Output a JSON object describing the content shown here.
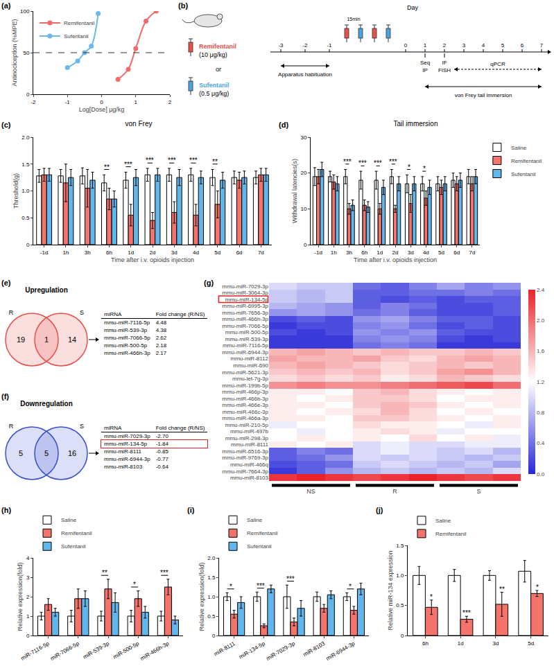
{
  "chart_data": [
    {
      "panel": "(a)",
      "type": "scatter",
      "x_label": "Log[Dose] μg/kg",
      "y_label": "Antinociception (%MPE)",
      "xlim": [
        -2,
        2
      ],
      "xticks": [
        -2,
        -1,
        0,
        1,
        2
      ],
      "ylim": [
        0,
        100
      ],
      "yticks": [
        0,
        50,
        100
      ],
      "hline": 50,
      "legend": "top-left",
      "series": [
        {
          "name": "Remifentanil",
          "color": "#f26b6b",
          "marker": "circle",
          "line_style": "spline",
          "x": [
            0.48,
            0.78,
            1.0,
            1.3,
            1.6
          ],
          "values": [
            18,
            30,
            55,
            88,
            100
          ]
        },
        {
          "name": "Sufentanil",
          "color": "#6bb8ea",
          "marker": "circle",
          "line_style": "spline",
          "x": [
            -1.0,
            -0.7,
            -0.5,
            -0.3,
            -0.1
          ],
          "values": [
            32,
            40,
            50,
            58,
            97
          ]
        }
      ]
    },
    {
      "panel": "(c)",
      "type": "bar",
      "title": "von Frey",
      "x_label": "Time after i.v. opioids injection",
      "y_label": "Threshold(g)",
      "categories": [
        "-1d",
        "1h",
        "3h",
        "6h",
        "1d",
        "2d",
        "3d",
        "4d",
        "5d",
        "6d",
        "7d"
      ],
      "ylim": [
        0,
        2
      ],
      "yticks": [
        0,
        0.5,
        {
          "value": 1,
          "label": "1.0"
        },
        1.5,
        {
          "value": 2,
          "label": "2.0"
        }
      ],
      "series": [
        {
          "name": "Saline",
          "color": "#ffffff",
          "values": [
            1.28,
            1.28,
            1.28,
            1.15,
            1.2,
            1.3,
            1.3,
            1.3,
            1.25,
            1.25,
            1.25
          ],
          "errors": [
            0.12,
            0.12,
            0.15,
            0.15,
            0.15,
            0.12,
            0.12,
            0.12,
            0.15,
            0.12,
            0.12
          ]
        },
        {
          "name": "Remifentanil",
          "color": "#f4736b",
          "values": [
            1.3,
            1.15,
            1.05,
            0.85,
            0.55,
            0.45,
            0.6,
            0.55,
            0.75,
            1.2,
            1.3
          ],
          "errors": [
            0.12,
            0.35,
            0.35,
            0.2,
            0.2,
            0.15,
            0.2,
            0.2,
            0.25,
            0.15,
            0.12
          ]
        },
        {
          "name": "Sufentanil",
          "color": "#61b7ec",
          "values": [
            1.3,
            1.25,
            1.2,
            0.85,
            1.25,
            1.3,
            1.25,
            1.25,
            1.2,
            1.25,
            1.3
          ],
          "errors": [
            0.12,
            0.15,
            0.15,
            0.15,
            0.15,
            0.12,
            0.15,
            0.12,
            0.15,
            0.12,
            0.12
          ]
        }
      ],
      "significance": [
        null,
        null,
        null,
        "**",
        "***",
        "***",
        "***",
        "***",
        "**",
        null,
        null
      ]
    },
    {
      "panel": "(d)",
      "type": "bar",
      "title": "Tail immersion",
      "x_label": "Time after i.v. opioids injection",
      "y_label": "Withdrawal latencies(s)",
      "legend": "right",
      "categories": [
        "-1d",
        "1h",
        "3h",
        "6h",
        "1d",
        "2d",
        "3d",
        "4d",
        "5d",
        "6d",
        "7d"
      ],
      "ylim": [
        0,
        30
      ],
      "yticks": [
        0,
        10,
        20,
        30
      ],
      "series": [
        {
          "name": "Saline",
          "color": "#ffffff",
          "values": [
            19,
            19,
            19,
            18,
            18,
            19,
            17,
            17,
            17,
            18,
            19
          ],
          "errors": [
            2.5,
            1.5,
            2,
            2.5,
            2.5,
            2,
            2.5,
            2,
            2,
            2,
            2
          ]
        },
        {
          "name": "Remifentanil",
          "color": "#f4736b",
          "values": [
            19,
            17.5,
            10,
            11,
            10,
            10,
            11.5,
            13,
            16,
            17,
            17
          ],
          "errors": [
            2,
            2,
            1.5,
            1.5,
            1.5,
            1,
            2.5,
            2,
            2,
            2,
            2
          ]
        },
        {
          "name": "Sufentanil",
          "color": "#61b7ec",
          "values": [
            21,
            17,
            11,
            10.5,
            16,
            17,
            17,
            16,
            17,
            18,
            19
          ],
          "errors": [
            2,
            2,
            1.5,
            1.5,
            2,
            2,
            2,
            2,
            2,
            2,
            2
          ]
        }
      ],
      "significance": [
        null,
        null,
        "***",
        "***",
        "***",
        "***",
        "*",
        "*",
        null,
        null,
        null
      ]
    },
    {
      "panel": "(g)",
      "type": "heatmap",
      "highlighted": "mmu-miR-134-5p",
      "rows": [
        "mmu-miR-7029-3p",
        "mmu-miR-3064-3p",
        "mmu-miR-134-5p",
        "mmu-miR-6995-3p",
        "mmu-miR-7656-3p",
        "mmu-miR-466h-3p",
        "mmu-miR-7066-5p",
        "mmu-miR-500-5p",
        "mmu-miR-539-3p",
        "mmu-miR-7116-5p",
        "mmu-miR-6944-3p",
        "mmu-miR-8112",
        "mmu-miR-690",
        "mmu-miR-5621-3p",
        "mmu-let-7g-3p",
        "mmu-miR-199b-5p",
        "mmu-miR-466p-3p",
        "mmu-miR-466b-3p",
        "mmu-miR-466e-3p",
        "mmu-miR-466c-3p",
        "mmu-miR-466a-3p",
        "mmu-miR-210-5p",
        "mmu-miR-497b",
        "mmu-miR-298-3p",
        "mmu-miR-8111",
        "mmu-miR-6516-3p",
        "mmu-miR-9769-3p",
        "mmu-miR-466q",
        "mmu-miR-7664-3p",
        "mmu-miR-8103"
      ],
      "columns": [
        "NS",
        "NS",
        "NS",
        "R",
        "R",
        "R",
        "S",
        "S",
        "S"
      ],
      "colors": [
        "#2828d8",
        "#ffffff",
        "#e8242a"
      ],
      "color_range": [
        0,
        2.4
      ],
      "color_ticks": [
        {
          "value": 0,
          "label": "0.0"
        },
        0.4,
        0.8,
        1.2,
        1.6,
        {
          "value": 2,
          "label": "2.0"
        },
        2.4
      ],
      "cells": [
        [
          1.0,
          0.9,
          0.9,
          0.4,
          0.3,
          0.5,
          0.7,
          0.5,
          0.6
        ],
        [
          0.9,
          0.8,
          0.9,
          0.3,
          0.3,
          0.4,
          0.4,
          0.5,
          0.4
        ],
        [
          0.9,
          0.8,
          0.9,
          0.3,
          0.2,
          0.3,
          0.2,
          0.3,
          0.3
        ],
        [
          0.8,
          0.7,
          0.6,
          0.3,
          0.5,
          0.4,
          0.2,
          0.2,
          0.3
        ],
        [
          0.6,
          0.7,
          0.6,
          0.4,
          0.5,
          0.3,
          0.2,
          0.2,
          0.3
        ],
        [
          0.2,
          0.3,
          0.2,
          0.6,
          0.7,
          0.5,
          0.3,
          0.3,
          0.2
        ],
        [
          0.1,
          0.2,
          0.2,
          0.5,
          0.6,
          0.4,
          0.2,
          0.3,
          0.2
        ],
        [
          0.2,
          0.1,
          0.2,
          0.6,
          0.5,
          0.6,
          0.3,
          0.2,
          0.2
        ],
        [
          0.1,
          0.1,
          0.1,
          0.5,
          0.6,
          0.5,
          0.2,
          0.1,
          0.2
        ],
        [
          0.1,
          0.1,
          0.1,
          0.4,
          0.5,
          0.4,
          0.1,
          0.1,
          0.1
        ],
        [
          1.6,
          1.7,
          1.6,
          1.5,
          1.6,
          1.5,
          1.5,
          1.6,
          1.5
        ],
        [
          1.7,
          1.6,
          1.6,
          1.7,
          1.5,
          1.4,
          1.6,
          1.7,
          1.6
        ],
        [
          1.6,
          1.7,
          1.6,
          1.5,
          1.4,
          1.5,
          1.6,
          1.5,
          1.6
        ],
        [
          1.5,
          1.6,
          1.5,
          1.6,
          1.4,
          1.5,
          1.7,
          1.8,
          1.6
        ],
        [
          1.4,
          1.5,
          1.4,
          1.5,
          1.3,
          1.4,
          1.6,
          1.5,
          1.4
        ],
        [
          1.8,
          1.9,
          1.8,
          1.8,
          1.9,
          2.0,
          2.1,
          2.2,
          2.0
        ],
        [
          1.3,
          1.3,
          1.2,
          1.5,
          1.6,
          1.4,
          1.3,
          1.2,
          1.3
        ],
        [
          1.3,
          1.2,
          1.3,
          1.5,
          1.5,
          1.4,
          1.2,
          1.3,
          1.3
        ],
        [
          1.3,
          1.3,
          1.2,
          1.5,
          1.6,
          1.5,
          1.3,
          1.2,
          1.3
        ],
        [
          1.3,
          1.2,
          1.3,
          1.4,
          1.6,
          1.4,
          1.2,
          1.3,
          1.2
        ],
        [
          1.3,
          1.3,
          1.2,
          1.5,
          1.5,
          1.4,
          1.3,
          1.2,
          1.3
        ],
        [
          1.1,
          1.2,
          1.2,
          1.4,
          1.3,
          1.3,
          1.2,
          1.1,
          1.3
        ],
        [
          1.2,
          1.1,
          1.2,
          1.3,
          1.4,
          1.3,
          1.1,
          1.2,
          1.2
        ],
        [
          1.2,
          1.3,
          1.2,
          1.3,
          1.2,
          1.4,
          1.2,
          1.3,
          1.1
        ],
        [
          1.3,
          1.2,
          1.3,
          1.0,
          1.1,
          1.0,
          1.0,
          1.1,
          1.1
        ],
        [
          0.3,
          0.5,
          0.4,
          1.0,
          1.1,
          1.0,
          0.9,
          1.0,
          0.8
        ],
        [
          0.3,
          0.4,
          0.6,
          1.0,
          0.9,
          1.0,
          0.9,
          0.8,
          0.9
        ],
        [
          0.2,
          0.3,
          0.4,
          0.9,
          1.0,
          0.9,
          0.8,
          0.9,
          0.7
        ],
        [
          0.1,
          0.3,
          0.6,
          0.8,
          0.9,
          0.8,
          0.9,
          0.8,
          1.0
        ],
        [
          2.3,
          2.4,
          2.3,
          2.2,
          2.3,
          2.4,
          2.3,
          2.2,
          2.3
        ]
      ]
    },
    {
      "panel": "(h)",
      "type": "bar",
      "y_label": "Relative expression(fold)",
      "legend": "top",
      "categories": [
        "miR-7116-5p",
        "miR-7066-5p",
        "miR-539-3p",
        "miR-500-5p",
        "miR-466h-3p"
      ],
      "ylim": [
        0,
        4
      ],
      "yticks": [
        0,
        1,
        2,
        3,
        4
      ],
      "series": [
        {
          "name": "Saline",
          "color": "#ffffff",
          "values": [
            1,
            1,
            1,
            1,
            1
          ],
          "errors": [
            0.2,
            0.3,
            0.25,
            0.3,
            0.25
          ]
        },
        {
          "name": "Remifentanil",
          "color": "#f4736b",
          "values": [
            1.6,
            1.9,
            2.4,
            1.9,
            2.5
          ],
          "errors": [
            0.3,
            0.5,
            0.5,
            0.4,
            0.4
          ]
        },
        {
          "name": "Sufentanil",
          "color": "#61b7ec",
          "values": [
            1.2,
            1.9,
            1.7,
            1.2,
            0.8
          ],
          "errors": [
            0.2,
            0.4,
            0.5,
            0.3,
            0.2
          ]
        }
      ],
      "significance": [
        null,
        null,
        "**",
        "*",
        "***"
      ]
    },
    {
      "panel": "(i)",
      "type": "bar",
      "y_label": "Relative expression(fold)",
      "legend": "top",
      "categories": [
        "miR-8111",
        "miR-134-5p",
        "miR-7029-3p",
        "miR-8103",
        "miR-6944-3p"
      ],
      "ylim": [
        0,
        2
      ],
      "yticks": [
        0,
        0.5,
        {
          "value": 1,
          "label": "1.0"
        },
        1.5,
        {
          "value": 2,
          "label": "2.0"
        }
      ],
      "series": [
        {
          "name": "Saline",
          "color": "#ffffff",
          "values": [
            1,
            1,
            1,
            1,
            1
          ],
          "errors": [
            0.1,
            0.12,
            0.3,
            0.12,
            0.1
          ]
        },
        {
          "name": "Remifentanil",
          "color": "#f4736b",
          "values": [
            0.55,
            0.25,
            0.35,
            0.7,
            0.65
          ],
          "errors": [
            0.1,
            0.05,
            0.1,
            0.1,
            0.1
          ]
        },
        {
          "name": "Sufentanil",
          "color": "#61b7ec",
          "values": [
            0.85,
            1.2,
            0.7,
            1.05,
            1.2
          ],
          "errors": [
            0.15,
            0.1,
            0.2,
            0.1,
            0.15
          ]
        }
      ],
      "significance": [
        "*",
        "***",
        "***",
        null,
        "*"
      ]
    },
    {
      "panel": "(j)",
      "type": "bar",
      "y_label": "Relative miR-134 expression",
      "legend": "top",
      "categories": [
        "6h",
        "1d",
        "3d",
        "5d"
      ],
      "ylim": [
        0,
        1.5
      ],
      "yticks": [
        0,
        0.5,
        {
          "value": 1,
          "label": "1.0"
        },
        1.5
      ],
      "series": [
        {
          "name": "Saline",
          "color": "#ffffff",
          "values": [
            1.0,
            1.0,
            1.0,
            1.07
          ],
          "errors": [
            0.15,
            0.1,
            0.08,
            0.18
          ]
        },
        {
          "name": "Remifentanil",
          "color": "#f4736b",
          "values": [
            0.47,
            0.27,
            0.52,
            0.7
          ],
          "errors": [
            0.12,
            0.05,
            0.2,
            0.05
          ]
        }
      ],
      "significance": [
        "*",
        "***",
        "**",
        "*"
      ]
    }
  ],
  "diagram": {
    "panel": "(b)",
    "drugs": [
      {
        "name": "Remifentanil",
        "dose": "(10 μg/kg)",
        "color": "#e8504a"
      },
      {
        "name": "Sufentanil",
        "dose": "(0.5 μg/kg)",
        "color": "#4aa3df"
      }
    ],
    "or": "or",
    "axis_label": "Day",
    "days": [
      -3,
      -2,
      -1,
      0,
      1,
      2,
      3,
      4,
      5,
      6,
      7
    ],
    "interval": "15min",
    "habituation": "Apparatus habituation",
    "tests": "von Frey tail immersion",
    "day1": [
      "Seq",
      "IP"
    ],
    "day2": [
      "IF",
      "FISH"
    ],
    "range_assay": "qPCR"
  },
  "venn": [
    {
      "panel": "(e)",
      "title": "Upregulation",
      "left": "R",
      "right": "S",
      "left_only": 19,
      "both": 1,
      "right_only": 14,
      "color": "#e8504a",
      "table_header": [
        "miRNA",
        "Fold change (R/NS)"
      ],
      "rows": [
        [
          "mmu-miR-7116-5p",
          "4.48"
        ],
        [
          "mmu-miR-539-3p",
          "4.38"
        ],
        [
          "mmu-miR-7066-5p",
          "2.62"
        ],
        [
          "mmu-miR-500-5p",
          "2.18"
        ],
        [
          "mmu-miR-466h-3p",
          "2.17"
        ]
      ]
    },
    {
      "panel": "(f)",
      "title": "Downregulation",
      "left": "R",
      "right": "S",
      "left_only": 5,
      "both": 5,
      "right_only": 16,
      "color": "#3a4fd0",
      "highlighted": "mmu-miR-134-5p",
      "table_header": [
        "miRNA",
        "Fold change (R/NS)"
      ],
      "rows": [
        [
          "mmu-miR-7029-3p",
          "-2.70"
        ],
        [
          "mmu-miR-134-5p",
          "-1.84"
        ],
        [
          "mmu-miR-8111",
          "-0.85"
        ],
        [
          "mmu-miR-6944-3p",
          "-0.77"
        ],
        [
          "mmu-miR-8103",
          "-0.64"
        ]
      ]
    }
  ]
}
